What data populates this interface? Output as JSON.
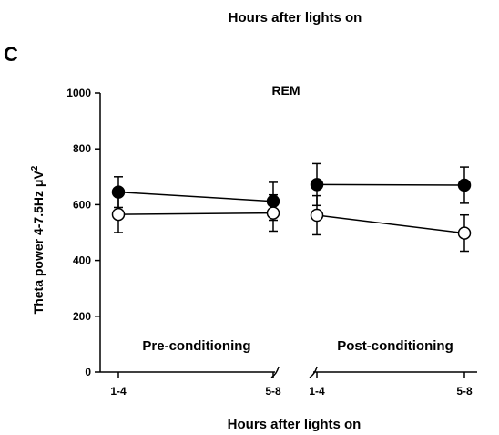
{
  "header_text": "Hours after lights on",
  "panel_label": "C",
  "chart_data": {
    "type": "line",
    "title": "REM",
    "ylabel": "Theta power 4-7.5Hz μV",
    "ylabel_superscript": "2",
    "xlabel": "Hours after lights on",
    "ylim": [
      0,
      1000
    ],
    "yticks": [
      0,
      200,
      400,
      600,
      800,
      1000
    ],
    "grid": false,
    "legend": "none",
    "panels": [
      {
        "label": "Pre-conditioning",
        "categories": [
          "1-4",
          "5-8"
        ],
        "series": [
          {
            "marker": "filled",
            "color": "#000000",
            "values": [
              645,
              612
            ],
            "errors": [
              55,
              68
            ]
          },
          {
            "marker": "open",
            "color": "#ffffff",
            "values": [
              565,
              570
            ],
            "errors": [
              65,
              65
            ]
          }
        ]
      },
      {
        "label": "Post-conditioning",
        "categories": [
          "1-4",
          "5-8"
        ],
        "series": [
          {
            "marker": "filled",
            "color": "#000000",
            "values": [
              672,
              670
            ],
            "errors": [
              75,
              65
            ]
          },
          {
            "marker": "open",
            "color": "#ffffff",
            "values": [
              562,
              498
            ],
            "errors": [
              70,
              65
            ]
          }
        ]
      }
    ]
  }
}
